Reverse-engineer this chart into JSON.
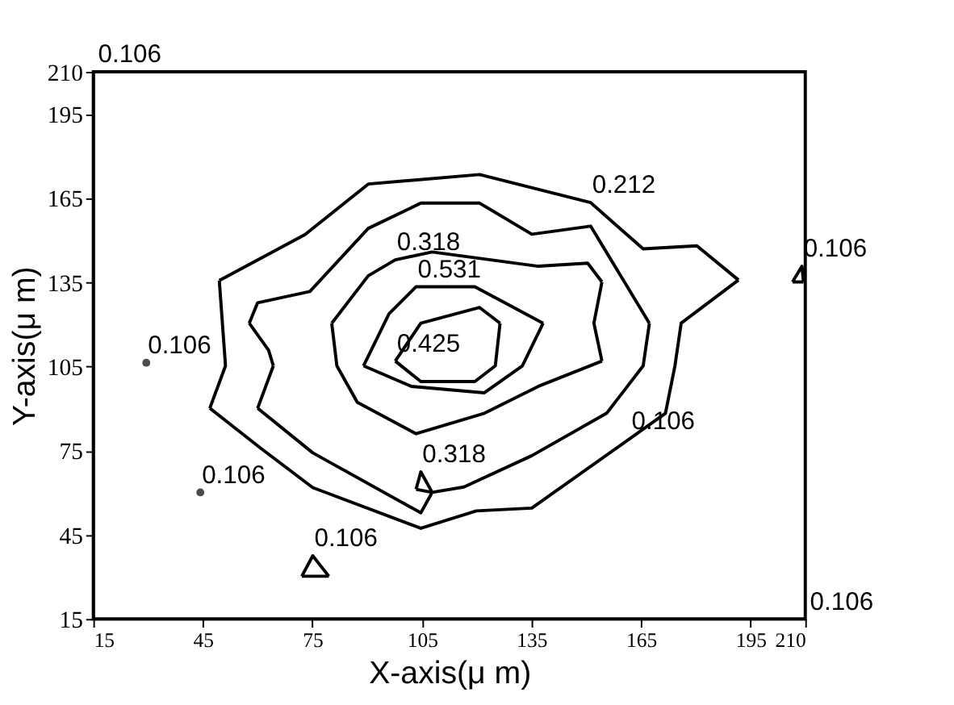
{
  "chart_data": {
    "type": "line",
    "xlabel": "X-axis(μ m)",
    "ylabel": "Y-axis(μ m)",
    "xlim": [
      15,
      210
    ],
    "xticks": [
      15,
      45,
      75,
      105,
      135,
      165,
      195,
      210
    ],
    "ylim": [
      15,
      210
    ],
    "yticks": [
      15,
      45,
      75,
      105,
      135,
      165,
      195,
      210
    ],
    "grid": false,
    "marker": "none",
    "line_style": "solid",
    "series": [
      {
        "color": "#000000",
        "x": [
          49.5,
          73,
          90.3,
          120.8,
          151.2,
          165.6,
          180.3,
          191.7
        ],
        "values": [
          135.6,
          152,
          170,
          173.4,
          163.4,
          146.9,
          148,
          135.8
        ]
      },
      {
        "color": "#000000",
        "x": [
          191.7,
          176,
          174.3,
          171.7,
          162,
          135.1,
          119.9,
          104.7,
          75.1,
          60.8,
          46.9
        ],
        "values": [
          135.8,
          120.4,
          105.2,
          88.3,
          79.3,
          54.5,
          53.5,
          47.3,
          61.8,
          75.9,
          90.1
        ]
      },
      {
        "color": "#000000",
        "x": [
          46.9,
          51.2,
          49.5
        ],
        "values": [
          90.1,
          105.2,
          135.6
        ]
      },
      {
        "color": "#000000",
        "x": [
          57.7,
          60,
          74.3,
          90.3,
          104.7,
          120.8,
          135.1,
          151.2,
          167.3
        ],
        "values": [
          120.4,
          127.7,
          131.7,
          154.2,
          163.2,
          163.2,
          152.1,
          155,
          120.4
        ]
      },
      {
        "color": "#000000",
        "x": [
          167.3,
          165.6,
          155.6,
          135.1,
          116.5,
          107.8,
          104.7,
          75.1,
          60
        ],
        "values": [
          120.4,
          105.2,
          88.3,
          73.2,
          62,
          60.1,
          52.8,
          74.2,
          90.1
        ]
      },
      {
        "color": "#000000",
        "x": [
          60,
          64.3
        ],
        "values": [
          90.1,
          105.2
        ]
      },
      {
        "color": "#000000",
        "x": [
          64.3,
          63,
          57.7
        ],
        "values": [
          105.2,
          110.8,
          120.4
        ]
      },
      {
        "color": "#000000",
        "x": [
          80.3,
          90.3,
          97.7,
          107.8,
          136.9,
          150.4,
          154.3
        ],
        "values": [
          120.4,
          137.3,
          143,
          145.8,
          140.7,
          141.8,
          135.1
        ]
      },
      {
        "color": "#000000",
        "x": [
          154.3,
          152.1,
          154.3
        ],
        "values": [
          135.1,
          120.4,
          106.9
        ]
      },
      {
        "color": "#000000",
        "x": [
          154.3,
          136.9,
          122.1,
          103.4,
          87.3,
          81.7,
          80.3
        ],
        "values": [
          106.9,
          97.9,
          88.3,
          81,
          92.2,
          105.2,
          120.4
        ]
      },
      {
        "color": "#000000",
        "x": [
          89,
          96,
          103.4,
          119.5,
          138.2
        ],
        "values": [
          105.2,
          123.8,
          133.4,
          133.4,
          120.4
        ]
      },
      {
        "color": "#000000",
        "x": [
          138.2,
          132.5,
          122.1,
          102.1,
          89
        ],
        "values": [
          120.4,
          105.2,
          95.6,
          97.9,
          105.2
        ]
      },
      {
        "color": "#000000",
        "x": [
          97.7,
          104.7,
          120.8,
          126.4
        ],
        "values": [
          106.9,
          120.4,
          126,
          120.4
        ]
      },
      {
        "color": "#000000",
        "x": [
          126.4,
          125.1,
          119.5,
          104.7,
          97.7
        ],
        "values": [
          120.4,
          105.2,
          99.6,
          99.6,
          106.9
        ]
      },
      {
        "color": "#000000",
        "x": [
          103.4,
          104.7,
          107.8
        ],
        "values": [
          61.2,
          67.4,
          60.1
        ]
      },
      {
        "color": "#000000",
        "x": [
          107.8,
          103.4
        ],
        "values": [
          60.1,
          61.2
        ]
      },
      {
        "color": "#000000",
        "x": [
          72.1,
          75.1,
          79.5
        ],
        "values": [
          30.2,
          37.5,
          30.2
        ]
      },
      {
        "color": "#000000",
        "x": [
          79.5,
          72.1
        ],
        "values": [
          30.2,
          30.2
        ]
      },
      {
        "color": "#000000",
        "x": [
          206.5,
          209.1,
          209.5
        ],
        "values": [
          135.1,
          140.7,
          135.1
        ]
      },
      {
        "color": "#000000",
        "x": [
          209.5,
          206.5
        ],
        "values": [
          135.1,
          135.1
        ]
      },
      {
        "type": "scatter",
        "color": "#000000",
        "marker": "circle",
        "x": [
          29.5,
          44.3
        ],
        "values": [
          106.3,
          60.1
        ]
      }
    ],
    "annotations": [
      "0.106",
      {
        "text": "0.212",
        "x": 151.2,
        "y": 163.4
      },
      {
        "text": "0.318",
        "x": 97.7,
        "y": 143
      },
      {
        "text": "0.531",
        "x": 103.4,
        "y": 133.4
      },
      {
        "text": "0.425",
        "x": 97.7,
        "y": 106.9
      },
      {
        "text": "0.106",
        "x": 29.5,
        "y": 106.3
      },
      {
        "text": "0.106",
        "x": 44.3,
        "y": 60.1
      },
      {
        "text": "0.318",
        "x": 104.7,
        "y": 67.4
      },
      {
        "text": "0.106",
        "x": 75.1,
        "y": 37.5
      },
      {
        "text": "0.106",
        "x": 209.1,
        "y": 140.7
      },
      {
        "text": "0.106",
        "x": 162,
        "y": 79.3
      },
      "0.106"
    ]
  }
}
